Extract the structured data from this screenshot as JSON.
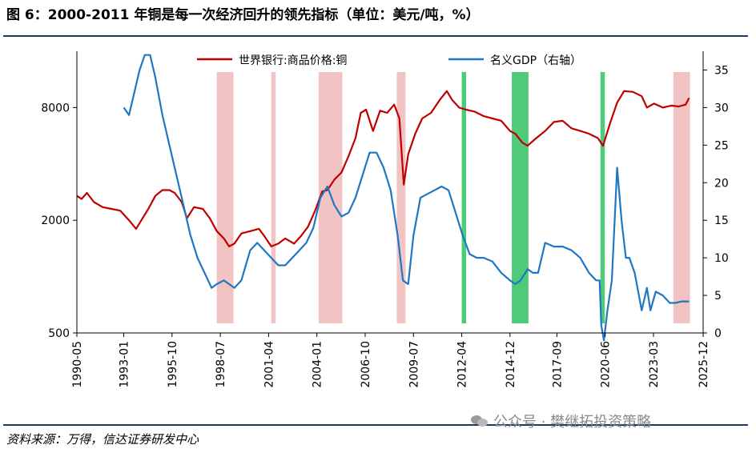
{
  "title": "图 6：2000-2011 年铜是每一次经济回升的领先指标（单位：美元/吨，%）",
  "source": "资料来源：万得，信达证券研发中心",
  "watermark": "公众号 · 樊继拓投资策略",
  "colors": {
    "copper": "#c00000",
    "gdp": "#1f77c4",
    "recession_shade": "#eeb8b8",
    "recovery_shade": "#3cc46a",
    "rule": "#1f3864"
  },
  "chart_data": {
    "type": "line",
    "title": "",
    "x_start": 1990.33,
    "x_end": 2026.0,
    "x_ticks": [
      {
        "x": 1990.33,
        "label": "1990-05"
      },
      {
        "x": 1993.0,
        "label": "1993-01"
      },
      {
        "x": 1995.75,
        "label": "1995-10"
      },
      {
        "x": 1998.5,
        "label": "1998-07"
      },
      {
        "x": 2001.25,
        "label": "2001-04"
      },
      {
        "x": 2004.0,
        "label": "2004-01"
      },
      {
        "x": 2006.75,
        "label": "2006-10"
      },
      {
        "x": 2009.5,
        "label": "2009-07"
      },
      {
        "x": 2012.25,
        "label": "2012-04"
      },
      {
        "x": 2015.0,
        "label": "2014-12"
      },
      {
        "x": 2017.67,
        "label": "2017-09"
      },
      {
        "x": 2020.42,
        "label": "2020-06"
      },
      {
        "x": 2023.17,
        "label": "2023-03"
      },
      {
        "x": 2026.0,
        "label": "2025-12"
      }
    ],
    "y_left": {
      "scale": "log",
      "range": [
        500,
        16000
      ],
      "ticks": [
        500,
        2000,
        8000
      ],
      "labels": [
        "500",
        "2000",
        "8000"
      ]
    },
    "y_right": {
      "range": [
        0,
        37.5
      ],
      "ticks": [
        0,
        5,
        10,
        15,
        20,
        25,
        30,
        35
      ],
      "labels": [
        "0",
        "5",
        "10",
        "15",
        "20",
        "25",
        "30",
        "35"
      ]
    },
    "legend": {
      "position": "top"
    },
    "shaded_regions": [
      {
        "start": 1998.3,
        "end": 1999.25,
        "kind": "recession"
      },
      {
        "start": 2001.4,
        "end": 2001.65,
        "kind": "recession"
      },
      {
        "start": 2004.1,
        "end": 2005.45,
        "kind": "recession"
      },
      {
        "start": 2008.55,
        "end": 2009.05,
        "kind": "recession"
      },
      {
        "start": 2024.3,
        "end": 2025.25,
        "kind": "recession"
      },
      {
        "start": 2012.25,
        "end": 2012.5,
        "kind": "recovery"
      },
      {
        "start": 2015.1,
        "end": 2016.05,
        "kind": "recovery"
      },
      {
        "start": 2020.15,
        "end": 2020.4,
        "kind": "recovery"
      }
    ],
    "series": [
      {
        "name": "世界银行:商品价格:铜",
        "axis": "left",
        "x": [
          1990.33,
          1990.6,
          1990.9,
          1991.3,
          1991.8,
          1992.3,
          1992.8,
          1993.3,
          1993.7,
          1994.0,
          1994.4,
          1994.8,
          1995.2,
          1995.6,
          1995.9,
          1996.3,
          1996.6,
          1997.0,
          1997.5,
          1997.9,
          1998.3,
          1998.7,
          1999.0,
          1999.3,
          1999.7,
          2000.2,
          2000.7,
          2001.0,
          2001.4,
          2001.8,
          2002.2,
          2002.7,
          2003.1,
          2003.5,
          2003.9,
          2004.3,
          2004.6,
          2005.0,
          2005.4,
          2005.8,
          2006.2,
          2006.5,
          2006.8,
          2007.2,
          2007.6,
          2008.0,
          2008.4,
          2008.7,
          2008.95,
          2009.2,
          2009.6,
          2010.0,
          2010.5,
          2011.0,
          2011.4,
          2011.7,
          2012.1,
          2012.5,
          2013.0,
          2013.5,
          2014.0,
          2014.5,
          2015.0,
          2015.3,
          2015.7,
          2016.0,
          2016.5,
          2017.0,
          2017.5,
          2018.0,
          2018.5,
          2019.0,
          2019.5,
          2020.0,
          2020.3,
          2020.7,
          2021.1,
          2021.5,
          2022.0,
          2022.5,
          2022.8,
          2023.2,
          2023.7,
          2024.2,
          2024.6,
          2025.0,
          2025.2
        ],
        "values": [
          2700,
          2600,
          2800,
          2500,
          2350,
          2300,
          2250,
          2000,
          1800,
          2000,
          2300,
          2700,
          2900,
          2900,
          2800,
          2500,
          2050,
          2350,
          2300,
          2050,
          1750,
          1600,
          1450,
          1500,
          1700,
          1750,
          1800,
          1650,
          1450,
          1500,
          1600,
          1500,
          1650,
          1850,
          2250,
          2850,
          2900,
          3300,
          3600,
          4400,
          5500,
          7500,
          7800,
          6000,
          7700,
          7500,
          8300,
          7000,
          3100,
          4500,
          5800,
          7000,
          7500,
          8800,
          9800,
          8800,
          8000,
          7800,
          7600,
          7200,
          7000,
          6800,
          6000,
          5800,
          5200,
          5000,
          5500,
          6000,
          6700,
          6800,
          6200,
          6000,
          5800,
          5500,
          5000,
          6600,
          8500,
          9800,
          9700,
          9200,
          8000,
          8400,
          8000,
          8200,
          8100,
          8300,
          9000
        ]
      },
      {
        "name": "名义GDP（右轴）",
        "axis": "right",
        "x": [
          1993.0,
          1993.3,
          1993.6,
          1993.9,
          1994.2,
          1994.5,
          1994.8,
          1995.2,
          1995.6,
          1996.0,
          1996.4,
          1996.8,
          1997.2,
          1997.6,
          1998.0,
          1998.3,
          1998.7,
          1999.0,
          1999.3,
          1999.7,
          2000.2,
          2000.6,
          2001.0,
          2001.4,
          2001.8,
          2002.2,
          2002.6,
          2003.0,
          2003.4,
          2003.8,
          2004.2,
          2004.6,
          2005.0,
          2005.4,
          2005.8,
          2006.2,
          2006.6,
          2007.0,
          2007.4,
          2007.8,
          2008.2,
          2008.6,
          2008.9,
          2009.2,
          2009.5,
          2009.9,
          2010.3,
          2010.7,
          2011.1,
          2011.5,
          2011.9,
          2012.3,
          2012.7,
          2013.1,
          2013.5,
          2014.0,
          2014.5,
          2015.0,
          2015.3,
          2015.6,
          2016.0,
          2016.3,
          2016.6,
          2017.0,
          2017.5,
          2018.0,
          2018.5,
          2019.0,
          2019.5,
          2019.9,
          2020.1,
          2020.2,
          2020.35,
          2020.55,
          2020.8,
          2021.1,
          2021.35,
          2021.6,
          2021.8,
          2022.1,
          2022.5,
          2022.8,
          2023.0,
          2023.3,
          2023.7,
          2024.1,
          2024.4,
          2024.8,
          2025.2
        ],
        "values": [
          30,
          29,
          32,
          35,
          37,
          37,
          34,
          29,
          25,
          21,
          17,
          13,
          10,
          8,
          6,
          6.5,
          7,
          6.5,
          6,
          7,
          11,
          12,
          11,
          10,
          9,
          9,
          10,
          11,
          12,
          14,
          18,
          19.5,
          17,
          15.5,
          16,
          18,
          21,
          24,
          24,
          22,
          19,
          13,
          7,
          6.5,
          13,
          18,
          18.5,
          19,
          19.5,
          19,
          16,
          13,
          10.5,
          10,
          10,
          9.5,
          8,
          7,
          6.5,
          7,
          8.5,
          8,
          8,
          12,
          11.5,
          11.5,
          11,
          10,
          8,
          7,
          7,
          1,
          -1,
          3,
          7,
          22,
          15,
          10,
          10,
          8,
          3,
          6,
          3,
          5.5,
          5,
          4,
          4,
          4.2,
          4.2
        ]
      }
    ]
  }
}
